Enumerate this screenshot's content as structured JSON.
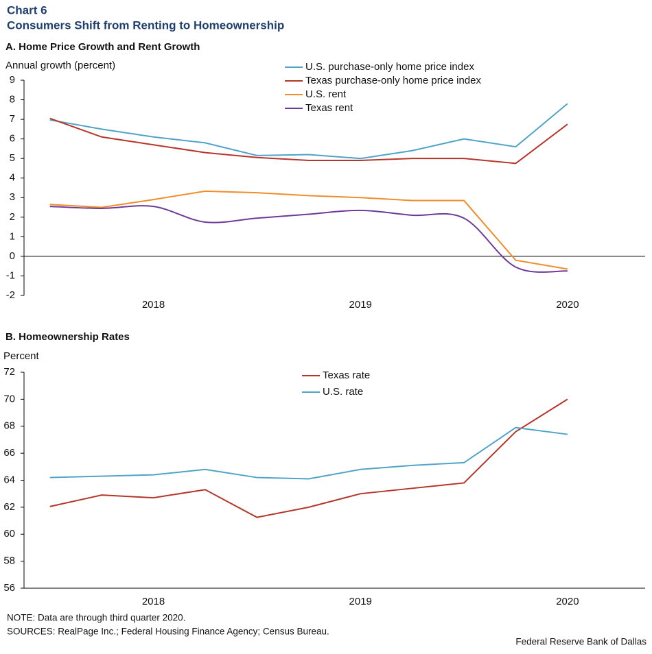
{
  "header": {
    "label": "Chart 6",
    "title": "Consumers Shift from Renting to Homeownership"
  },
  "chart_data": [
    {
      "type": "line",
      "title": "A. Home Price Growth and Rent Growth",
      "y_label": "Annual growth (percent)",
      "categories": [
        null,
        null,
        "2018",
        null,
        null,
        null,
        "2019",
        null,
        null,
        null,
        "2020",
        null
      ],
      "ylim": [
        -2,
        9
      ],
      "yticks": [
        -2,
        -1,
        0,
        1,
        2,
        3,
        4,
        5,
        6,
        7,
        8,
        9
      ],
      "series": [
        {
          "name": "U.S. purchase-only home price index",
          "color": "#4fa3c7",
          "values": [
            6.97,
            6.5,
            6.1,
            5.8,
            5.15,
            5.2,
            5.0,
            5.4,
            6.0,
            5.6,
            7.8,
            null
          ]
        },
        {
          "name": "Texas purchase-only home price index",
          "color": "#b5352a",
          "values": [
            7.05,
            6.1,
            5.7,
            5.3,
            5.05,
            4.9,
            4.9,
            5.0,
            5.0,
            4.75,
            6.75,
            null
          ]
        },
        {
          "name": "U.S. rent",
          "color": "#f08c2a",
          "values": [
            2.65,
            2.5,
            2.9,
            3.33,
            3.25,
            3.1,
            3.0,
            2.85,
            2.85,
            -0.2,
            -0.65,
            null
          ]
        },
        {
          "name": "Texas rent",
          "color": "#6e3a96",
          "smooth": true,
          "values": [
            2.55,
            2.45,
            2.55,
            1.75,
            1.95,
            2.15,
            2.35,
            2.1,
            1.95,
            -0.55,
            -0.75,
            null
          ]
        }
      ]
    },
    {
      "type": "line",
      "title": "B. Homeownership Rates",
      "y_label": "Percent",
      "categories": [
        null,
        null,
        "2018",
        null,
        null,
        null,
        "2019",
        null,
        null,
        null,
        "2020",
        null
      ],
      "ylim": [
        56,
        72
      ],
      "yticks": [
        56,
        58,
        60,
        62,
        64,
        66,
        68,
        70,
        72
      ],
      "series": [
        {
          "name": "Texas rate",
          "color": "#b5352a",
          "values": [
            62.05,
            62.9,
            62.7,
            63.3,
            61.25,
            62.0,
            63.0,
            63.4,
            63.8,
            67.6,
            70.0,
            null
          ]
        },
        {
          "name": "U.S. rate",
          "color": "#4fa3c7",
          "values": [
            64.2,
            64.3,
            64.4,
            64.8,
            64.2,
            64.1,
            64.8,
            65.1,
            65.3,
            67.9,
            67.4,
            null
          ]
        }
      ]
    }
  ],
  "footer": {
    "note": "NOTE: Data are through third quarter 2020.",
    "sources": "SOURCES: RealPage Inc.; Federal Housing Finance Agency; Census Bureau.",
    "credit": "Federal Reserve Bank of Dallas"
  }
}
